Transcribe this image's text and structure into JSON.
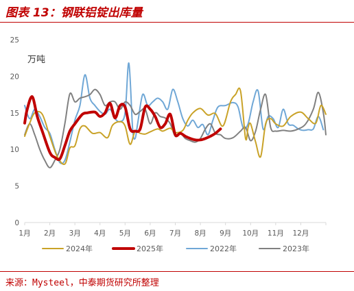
{
  "figure": {
    "title": "图表 13：钢联铝锭出库量",
    "source": "来源：Mysteel，中泰期货研究所整理"
  },
  "chart_data": {
    "type": "line",
    "title": "图表 13：钢联铝锭出库量",
    "unit_label": "万吨",
    "xlabel": "",
    "ylabel": "",
    "ylim": [
      0,
      25
    ],
    "yticks": [
      0,
      5,
      10,
      15,
      20,
      25
    ],
    "xlim": [
      1,
      13
    ],
    "x_tick_labels": [
      "1月",
      "2月",
      "3月",
      "4月",
      "5月",
      "6月",
      "7月",
      "8月",
      "9月",
      "10月",
      "11月",
      "12月"
    ],
    "grid": false,
    "legend_position": "bottom",
    "series": [
      {
        "name": "2024年",
        "color": "#c9a227",
        "width": 2,
        "x": [
          1.0,
          1.2,
          1.4,
          1.7,
          2.0,
          2.3,
          2.6,
          2.8,
          3.0,
          3.2,
          3.4,
          3.7,
          4.0,
          4.3,
          4.5,
          4.8,
          5.0,
          5.2,
          5.4,
          5.6,
          5.8,
          6.0,
          6.3,
          6.5,
          6.8,
          7.0,
          7.3,
          7.5,
          7.7,
          8.0,
          8.3,
          8.6,
          8.9,
          9.2,
          9.4,
          9.6,
          9.8,
          9.9,
          10.0,
          10.2,
          10.4,
          10.6,
          10.8,
          11.0,
          11.3,
          11.6,
          12.0,
          12.3,
          12.6,
          12.8,
          13.0
        ],
        "y": [
          11.8,
          13.6,
          15.0,
          14.8,
          11.8,
          9.0,
          8.0,
          10.2,
          10.5,
          12.8,
          13.2,
          12.2,
          12.3,
          11.6,
          13.3,
          13.8,
          13.2,
          10.7,
          12.5,
          12.2,
          12.1,
          12.4,
          12.8,
          12.5,
          12.9,
          12.3,
          12.6,
          14.0,
          15.0,
          15.6,
          14.7,
          14.9,
          13.2,
          16.5,
          17.5,
          18.0,
          11.5,
          13.0,
          13.5,
          11.0,
          9.0,
          13.5,
          14.2,
          13.5,
          13.2,
          14.5,
          15.1,
          14.2,
          13.6,
          16.0,
          14.8
        ]
      },
      {
        "name": "2025年",
        "color": "#c00000",
        "width": 4,
        "x": [
          1.0,
          1.1,
          1.3,
          1.5,
          1.7,
          2.0,
          2.2,
          2.4,
          2.6,
          2.8,
          3.0,
          3.3,
          3.5,
          3.8,
          4.0,
          4.2,
          4.4,
          4.6,
          4.8,
          5.0,
          5.2,
          5.4,
          5.6,
          5.8,
          6.0,
          6.2,
          6.4,
          6.6,
          6.8,
          7.0,
          7.2,
          7.4,
          7.6,
          7.8,
          8.0,
          8.2,
          8.4,
          8.6,
          8.8
        ],
        "y": [
          13.6,
          15.5,
          17.2,
          14.5,
          12.5,
          9.6,
          8.9,
          8.7,
          10.5,
          12.5,
          13.5,
          14.8,
          15.0,
          15.1,
          14.5,
          15.0,
          16.3,
          14.3,
          16.0,
          15.8,
          12.8,
          12.5,
          12.8,
          15.8,
          15.5,
          14.5,
          13.0,
          13.5,
          14.8,
          12.0,
          12.2,
          11.8,
          11.5,
          11.3,
          11.3,
          11.5,
          11.8,
          12.2,
          12.8
        ]
      },
      {
        "name": "2022年",
        "color": "#6fa7d6",
        "width": 2,
        "x": [
          1.0,
          1.2,
          1.4,
          1.6,
          1.8,
          2.0,
          2.2,
          2.4,
          2.6,
          2.8,
          3.0,
          3.2,
          3.4,
          3.6,
          3.8,
          4.0,
          4.2,
          4.4,
          4.6,
          4.8,
          5.0,
          5.15,
          5.3,
          5.4,
          5.5,
          5.7,
          5.9,
          6.1,
          6.3,
          6.5,
          6.7,
          6.9,
          7.1,
          7.3,
          7.5,
          7.7,
          7.9,
          8.1,
          8.3,
          8.5,
          8.7,
          9.0,
          9.3,
          9.5,
          9.7,
          9.9,
          10.1,
          10.3,
          10.5,
          10.7,
          10.9,
          11.1,
          11.3,
          11.5,
          11.7,
          11.9,
          12.1,
          12.3,
          12.5,
          12.7,
          12.9
        ],
        "y": [
          16.0,
          14.2,
          15.5,
          14.5,
          13.0,
          12.2,
          10.0,
          8.2,
          8.5,
          11.0,
          14.0,
          16.0,
          20.2,
          17.0,
          16.0,
          15.2,
          14.8,
          15.5,
          14.2,
          13.8,
          15.0,
          21.8,
          12.8,
          11.5,
          13.5,
          17.5,
          16.0,
          16.5,
          17.0,
          16.5,
          15.5,
          18.2,
          16.5,
          14.2,
          13.2,
          14.0,
          13.0,
          13.4,
          12.0,
          14.0,
          15.8,
          16.0,
          16.4,
          15.8,
          13.0,
          13.5,
          16.5,
          18.0,
          12.8,
          14.5,
          14.2,
          13.0,
          15.5,
          13.5,
          13.3,
          12.8,
          12.6,
          12.7,
          12.8,
          14.5,
          12.7
        ]
      },
      {
        "name": "2023年",
        "color": "#808080",
        "width": 2,
        "x": [
          1.0,
          1.2,
          1.4,
          1.6,
          1.8,
          2.0,
          2.2,
          2.4,
          2.6,
          2.8,
          3.0,
          3.2,
          3.4,
          3.6,
          3.8,
          4.0,
          4.2,
          4.4,
          4.6,
          4.8,
          5.0,
          5.2,
          5.4,
          5.6,
          5.8,
          6.0,
          6.2,
          6.4,
          6.6,
          6.8,
          7.0,
          7.2,
          7.4,
          7.6,
          7.8,
          8.0,
          8.2,
          8.4,
          8.6,
          8.8,
          9.0,
          9.3,
          9.6,
          9.8,
          10.0,
          10.2,
          10.4,
          10.6,
          10.8,
          11.0,
          11.3,
          11.6,
          11.9,
          12.2,
          12.5,
          12.7,
          12.9,
          13.0
        ],
        "y": [
          12.0,
          13.5,
          12.0,
          10.0,
          8.5,
          7.5,
          8.5,
          10.0,
          13.5,
          17.6,
          16.5,
          17.0,
          17.2,
          17.5,
          18.2,
          17.5,
          16.0,
          16.5,
          16.5,
          15.5,
          16.5,
          16.0,
          14.8,
          15.2,
          15.5,
          13.5,
          15.0,
          14.5,
          14.3,
          13.5,
          11.8,
          12.2,
          11.5,
          11.2,
          11.0,
          11.5,
          12.8,
          13.5,
          12.2,
          12.0,
          11.5,
          11.6,
          12.5,
          13.0,
          11.2,
          12.5,
          15.5,
          17.5,
          13.0,
          12.5,
          12.6,
          12.5,
          12.8,
          13.5,
          15.5,
          17.8,
          15.0,
          12.0
        ]
      }
    ]
  }
}
